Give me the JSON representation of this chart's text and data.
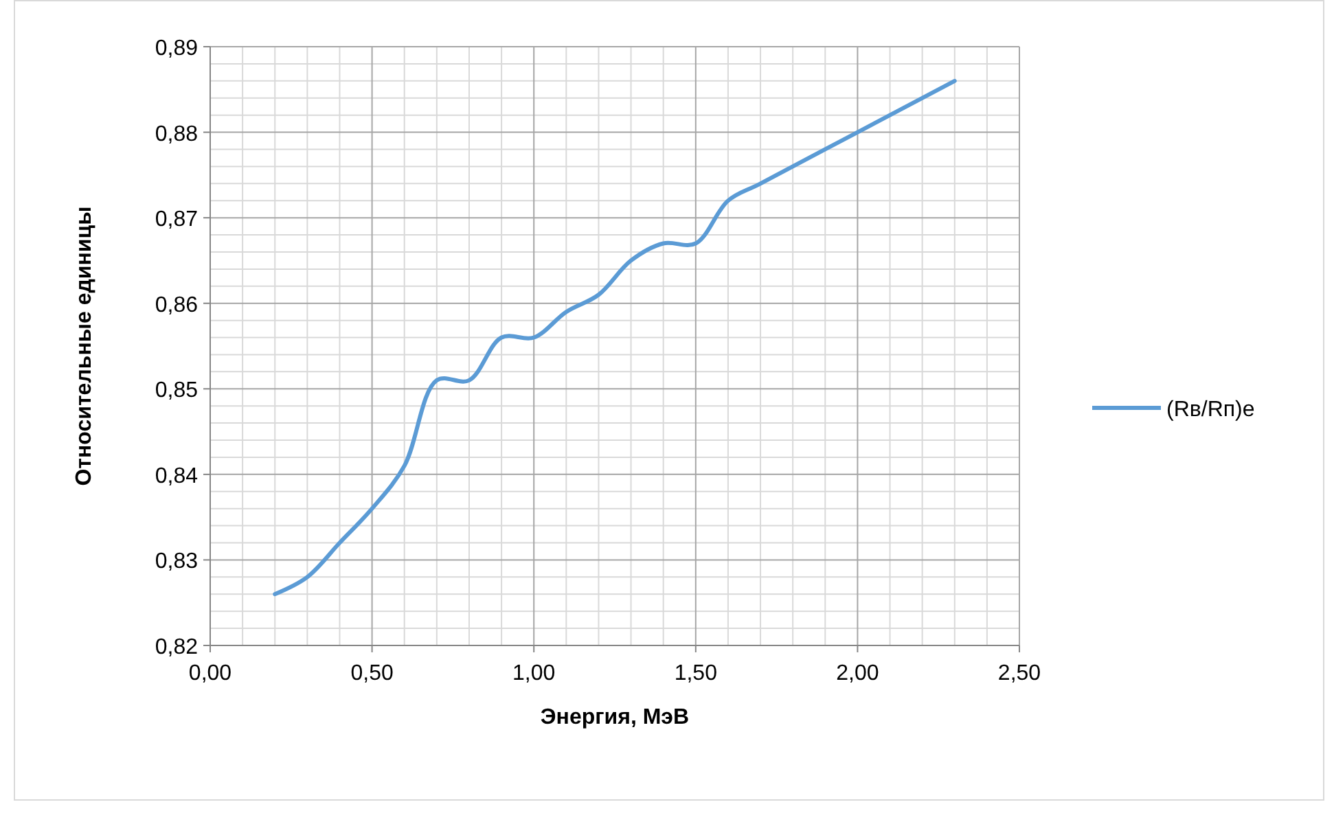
{
  "chart_data": {
    "type": "line",
    "xlabel": "Энергия, МэВ",
    "ylabel": "Относительные единицы",
    "x": [
      0.2,
      0.3,
      0.4,
      0.5,
      0.6,
      0.7,
      0.8,
      0.9,
      1.0,
      1.1,
      1.2,
      1.3,
      1.4,
      1.5,
      1.6,
      1.7,
      2.0,
      2.3
    ],
    "series": [
      {
        "name": "(Rв/Rп)e",
        "color": "#5b9bd5",
        "values": [
          0.826,
          0.828,
          0.832,
          0.836,
          0.841,
          0.851,
          0.851,
          0.856,
          0.856,
          0.859,
          0.861,
          0.865,
          0.867,
          0.867,
          0.872,
          0.874,
          0.88,
          0.886
        ]
      }
    ],
    "xlim": [
      0,
      2.5
    ],
    "xticks": [
      {
        "value": 0,
        "label": "0,00"
      },
      {
        "value": 0.5,
        "label": "0,50"
      },
      {
        "value": 1,
        "label": "1,00"
      },
      {
        "value": 1.5,
        "label": "1,50"
      },
      {
        "value": 2,
        "label": "2,00"
      },
      {
        "value": 2.5,
        "label": "2,50"
      }
    ],
    "ylim": [
      0.82,
      0.89
    ],
    "yticks": [
      {
        "value": 0.82,
        "label": "0,82"
      },
      {
        "value": 0.83,
        "label": "0,83"
      },
      {
        "value": 0.84,
        "label": "0,84"
      },
      {
        "value": 0.85,
        "label": "0,85"
      },
      {
        "value": 0.86,
        "label": "0,86"
      },
      {
        "value": 0.87,
        "label": "0,87"
      },
      {
        "value": 0.88,
        "label": "0,88"
      },
      {
        "value": 0.89,
        "label": "0,89"
      }
    ],
    "grid": true,
    "legend": "right",
    "marker": "none",
    "line_style": "solid"
  }
}
